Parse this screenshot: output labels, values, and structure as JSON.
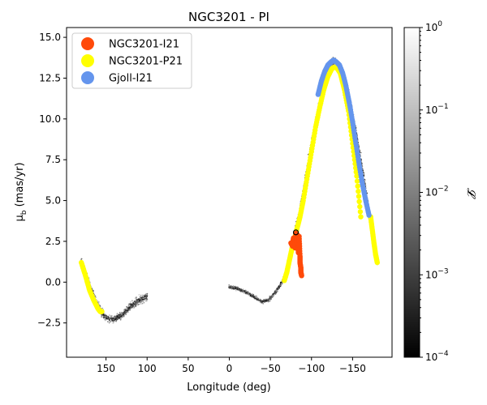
{
  "chart_data": {
    "type": "scatter",
    "title": "NGC3201 - PI",
    "xlabel": "Longitude (deg)",
    "ylabel_main": "μ",
    "ylabel_sub": "b",
    "ylabel_rest": " (mas/yr)",
    "xlim": [
      198,
      -198
    ],
    "ylim": [
      -4.6,
      15.6
    ],
    "xticks": [
      150,
      100,
      50,
      0,
      -50,
      -100,
      -150
    ],
    "xtick_labels": [
      "150",
      "100",
      "50",
      "0",
      "−50",
      "−100",
      "−150"
    ],
    "yticks": [
      -2.5,
      0.0,
      2.5,
      5.0,
      7.5,
      10.0,
      12.5,
      15.0
    ],
    "ytick_labels": [
      "−2.5",
      "0.0",
      "2.5",
      "5.0",
      "7.5",
      "10.0",
      "12.5",
      "15.0"
    ],
    "colorbar": {
      "label": "𝓛",
      "scale": "log",
      "range": [
        0.0001,
        1
      ],
      "ticks": [
        {
          "value": 1,
          "base": "10",
          "exp": "0"
        },
        {
          "value": 0.1,
          "base": "10",
          "exp": "−1"
        },
        {
          "value": 0.01,
          "base": "10",
          "exp": "−2"
        },
        {
          "value": 0.001,
          "base": "10",
          "exp": "−3"
        },
        {
          "value": 0.0001,
          "base": "10",
          "exp": "−4"
        }
      ]
    },
    "legend_location": "upper-left",
    "background_density": {
      "segments": [
        {
          "x": [
            180,
            170,
            160,
            152,
            140,
            130,
            120,
            110,
            100
          ],
          "y": [
            1.2,
            -0.2,
            -1.4,
            -2.1,
            -2.3,
            -2.0,
            -1.5,
            -1.1,
            -0.9
          ],
          "spread": 0.35
        },
        {
          "x": [
            0,
            -10,
            -20,
            -30,
            -40,
            -48,
            -55,
            -62,
            -68,
            -72
          ],
          "y": [
            -0.3,
            -0.4,
            -0.6,
            -0.9,
            -1.2,
            -1.1,
            -0.7,
            -0.2,
            0.4,
            1.2
          ],
          "spread": 0.15
        },
        {
          "x": [
            -72,
            -80,
            -90,
            -100,
            -110,
            -118,
            -125,
            -128,
            -135,
            -145,
            -155,
            -165,
            -172,
            -178,
            -180
          ],
          "y": [
            1.2,
            3.0,
            5.5,
            8.5,
            11.0,
            12.8,
            13.5,
            13.6,
            13.2,
            11.5,
            9.0,
            6.0,
            3.5,
            1.8,
            1.2
          ],
          "spread": 0.3
        }
      ],
      "colors": [
        "#1a1a1a",
        "#444444",
        "#6e6e6e",
        "#999999",
        "#c4c4c4"
      ]
    },
    "series": [
      {
        "name": "NGC3201-I21",
        "color": "#ff4a0a",
        "segments": [
          {
            "x": [
              -75,
              -77,
              -78,
              -80,
              -81,
              -82,
              -83,
              -84,
              -85,
              -86,
              -86,
              -87,
              -87,
              -88
            ],
            "y": [
              2.4,
              2.2,
              2.7,
              2.1,
              3.0,
              2.5,
              2.9,
              1.8,
              2.8,
              1.6,
              1.2,
              0.9,
              0.6,
              0.4
            ]
          }
        ]
      },
      {
        "name": "NGC3201-P21",
        "color": "#ffff00",
        "segments": [
          {
            "x": [
              180,
              175,
              170,
              165,
              160,
              157,
              155
            ],
            "y": [
              1.2,
              0.4,
              -0.5,
              -1.1,
              -1.6,
              -1.8,
              -1.8
            ]
          },
          {
            "x": [
              -67,
              -70,
              -73,
              -76,
              -79,
              -82,
              -86,
              -90,
              -95,
              -100,
              -105,
              -110,
              -115,
              -120,
              -125,
              -130,
              -135,
              -140,
              -145,
              -150,
              -155,
              -160
            ],
            "y": [
              0.1,
              0.6,
              1.3,
              2.0,
              2.6,
              3.2,
              4.0,
              5.0,
              6.5,
              8.0,
              9.5,
              10.7,
              11.8,
              12.6,
              13.1,
              13.2,
              12.8,
              11.8,
              10.5,
              8.5,
              6.5,
              4.0
            ]
          },
          {
            "x": [
              -172,
              -174,
              -176,
              -178,
              -180
            ],
            "y": [
              4.0,
              3.2,
              2.4,
              1.7,
              1.2
            ]
          }
        ]
      },
      {
        "name": "Gjoll-I21",
        "color": "#6495ed",
        "segments": [
          {
            "x": [
              -108,
              -112,
              -116,
              -120,
              -124,
              -127,
              -130,
              -134,
              -138,
              -142,
              -146,
              -150,
              -154,
              -158,
              -162,
              -166,
              -170
            ],
            "y": [
              11.5,
              12.3,
              12.9,
              13.3,
              13.5,
              13.6,
              13.5,
              13.3,
              12.8,
              12.0,
              11.0,
              9.8,
              8.5,
              7.2,
              6.0,
              5.0,
              4.1
            ]
          }
        ]
      }
    ],
    "highlight": {
      "x": -81,
      "y": 3.05
    }
  }
}
